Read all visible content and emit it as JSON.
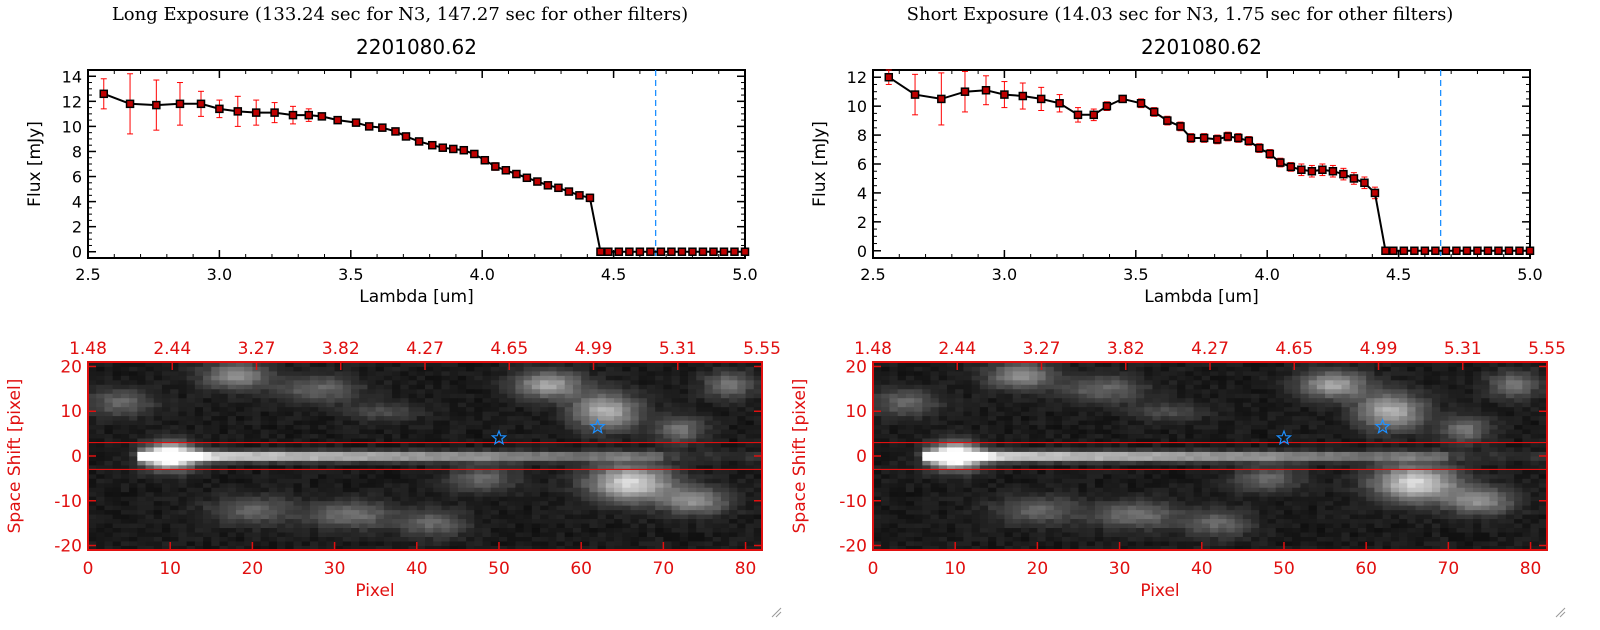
{
  "panels": [
    {
      "header": "Long Exposure (133.24 sec for N3, 147.27 sec for other filters)"
    },
    {
      "header": "Short Exposure (14.03 sec for N3, 1.75 sec for other filters)"
    }
  ],
  "colors": {
    "marker_red": "#c00000",
    "error_red": "#ff0000",
    "axis_red": "#e01010",
    "dashed_blue": "#1e90ff",
    "star_blue": "#1e90ff"
  },
  "chart_data": [
    {
      "type": "line",
      "panel": "long",
      "title": "2201080.62",
      "xlabel": "Lambda [um]",
      "ylabel": "Flux [mJy]",
      "xlim": [
        2.5,
        5.0
      ],
      "ylim": [
        -0.5,
        14.5
      ],
      "xticks": [
        "2.5",
        "3.0",
        "3.5",
        "4.0",
        "4.5",
        "5.0"
      ],
      "yticks": [
        "0",
        "2",
        "4",
        "6",
        "8",
        "10",
        "12",
        "14"
      ],
      "vline_x": 4.66,
      "x": [
        2.56,
        2.66,
        2.76,
        2.85,
        2.93,
        3.0,
        3.07,
        3.14,
        3.21,
        3.28,
        3.34,
        3.39,
        3.45,
        3.52,
        3.57,
        3.62,
        3.67,
        3.71,
        3.76,
        3.81,
        3.85,
        3.89,
        3.93,
        3.97,
        4.01,
        4.05,
        4.09,
        4.13,
        4.17,
        4.21,
        4.25,
        4.29,
        4.33,
        4.37,
        4.41,
        4.45,
        4.48,
        4.52,
        4.56,
        4.6,
        4.64,
        4.68,
        4.72,
        4.76,
        4.8,
        4.84,
        4.88,
        4.92,
        4.96,
        5.0
      ],
      "y": [
        12.6,
        11.8,
        11.7,
        11.8,
        11.8,
        11.4,
        11.2,
        11.1,
        11.1,
        10.9,
        10.9,
        10.8,
        10.5,
        10.3,
        10.0,
        9.9,
        9.6,
        9.2,
        8.8,
        8.5,
        8.3,
        8.2,
        8.1,
        7.8,
        7.3,
        6.8,
        6.5,
        6.2,
        5.9,
        5.6,
        5.3,
        5.1,
        4.8,
        4.5,
        4.3,
        0,
        0,
        0,
        0,
        0,
        0,
        0,
        0,
        0,
        0,
        0,
        0,
        0,
        0,
        0
      ],
      "err": [
        1.2,
        2.4,
        2.0,
        1.7,
        1.0,
        0.7,
        1.2,
        1.0,
        0.8,
        0.7,
        0.5,
        0.2,
        0.2,
        0.2,
        0.2,
        0.2,
        0.2,
        0.2,
        0.2,
        0.2,
        0.2,
        0.2,
        0.2,
        0.2,
        0.3,
        0.3,
        0.2,
        0.2,
        0.2,
        0.2,
        0.2,
        0.2,
        0.2,
        0.2,
        0.3,
        0,
        0,
        0,
        0,
        0,
        0,
        0,
        0,
        0,
        0,
        0,
        0,
        0,
        0,
        0
      ]
    },
    {
      "type": "line",
      "panel": "short",
      "title": "2201080.62",
      "xlabel": "Lambda [um]",
      "ylabel": "Flux [mJy]",
      "xlim": [
        2.5,
        5.0
      ],
      "ylim": [
        -0.5,
        12.5
      ],
      "xticks": [
        "2.5",
        "3.0",
        "3.5",
        "4.0",
        "4.5",
        "5.0"
      ],
      "yticks": [
        "0",
        "2",
        "4",
        "6",
        "8",
        "10",
        "12"
      ],
      "vline_x": 4.66,
      "x": [
        2.56,
        2.66,
        2.76,
        2.85,
        2.93,
        3.0,
        3.07,
        3.14,
        3.21,
        3.28,
        3.34,
        3.39,
        3.45,
        3.52,
        3.57,
        3.62,
        3.67,
        3.71,
        3.76,
        3.81,
        3.85,
        3.89,
        3.93,
        3.97,
        4.01,
        4.05,
        4.09,
        4.13,
        4.17,
        4.21,
        4.25,
        4.29,
        4.33,
        4.37,
        4.41,
        4.45,
        4.48,
        4.52,
        4.56,
        4.6,
        4.64,
        4.68,
        4.72,
        4.76,
        4.8,
        4.84,
        4.88,
        4.92,
        4.96,
        5.0
      ],
      "y": [
        12.0,
        10.8,
        10.5,
        11.0,
        11.1,
        10.8,
        10.7,
        10.5,
        10.2,
        9.4,
        9.4,
        10.0,
        10.5,
        10.2,
        9.6,
        9.0,
        8.6,
        7.8,
        7.8,
        7.7,
        7.9,
        7.8,
        7.6,
        7.1,
        6.7,
        6.1,
        5.8,
        5.6,
        5.5,
        5.6,
        5.5,
        5.3,
        5.0,
        4.7,
        4.0,
        0,
        0,
        0,
        0,
        0,
        0,
        0,
        0,
        0,
        0,
        0,
        0,
        0,
        0,
        0
      ],
      "err": [
        0.5,
        1.4,
        1.8,
        1.4,
        1.0,
        0.9,
        0.9,
        0.8,
        0.6,
        0.5,
        0.4,
        0.3,
        0.2,
        0.3,
        0.3,
        0.3,
        0.3,
        0.3,
        0.3,
        0.3,
        0.3,
        0.3,
        0.3,
        0.3,
        0.3,
        0.3,
        0.3,
        0.4,
        0.4,
        0.4,
        0.4,
        0.4,
        0.4,
        0.4,
        0.4,
        0,
        0,
        0,
        0,
        0,
        0,
        0,
        0,
        0,
        0,
        0,
        0,
        0,
        0,
        0
      ]
    },
    {
      "type": "heatmap",
      "panel": "long",
      "xlabel": "Pixel",
      "ylabel": "Space Shift [pixel]",
      "xlim": [
        0,
        82
      ],
      "ylim": [
        -21,
        21
      ],
      "xticks": [
        "0",
        "10",
        "20",
        "30",
        "40",
        "50",
        "60",
        "70",
        "80"
      ],
      "yticks": [
        "20",
        "10",
        "0",
        "-10",
        "-20"
      ],
      "top_ticks": [
        "1.48",
        "2.44",
        "3.27",
        "3.82",
        "4.27",
        "4.65",
        "4.99",
        "5.31",
        "5.55"
      ],
      "aperture_lines": [
        3,
        -3
      ],
      "star_markers": [
        {
          "x": 50,
          "y": 4
        },
        {
          "x": 62,
          "y": 6.5
        }
      ]
    },
    {
      "type": "heatmap",
      "panel": "short",
      "xlabel": "Pixel",
      "ylabel": "Space Shift [pixel]",
      "xlim": [
        0,
        82
      ],
      "ylim": [
        -21,
        21
      ],
      "xticks": [
        "0",
        "10",
        "20",
        "30",
        "40",
        "50",
        "60",
        "70",
        "80"
      ],
      "yticks": [
        "20",
        "10",
        "0",
        "-10",
        "-20"
      ],
      "top_ticks": [
        "1.48",
        "2.44",
        "3.27",
        "3.82",
        "4.27",
        "4.65",
        "4.99",
        "5.31",
        "5.55"
      ],
      "aperture_lines": [
        3,
        -3
      ],
      "star_markers": [
        {
          "x": 50,
          "y": 4
        },
        {
          "x": 62,
          "y": 6.5
        }
      ]
    }
  ]
}
